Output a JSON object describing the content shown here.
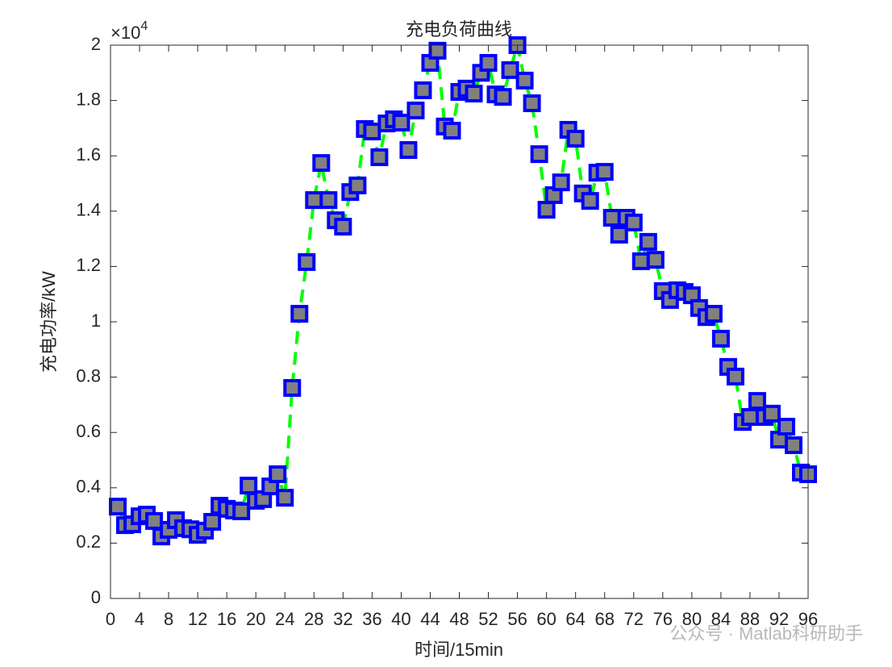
{
  "chart_data": {
    "type": "scatter",
    "title": "充电负荷曲线",
    "x_label": "时间/15min",
    "y_label": "充电功率/kW",
    "y_multiplier": "×10",
    "y_multiplier_exponent": "4",
    "watermark": "公众号 · Matlab科研助手",
    "x": [
      1,
      2,
      3,
      4,
      5,
      6,
      7,
      8,
      9,
      10,
      11,
      12,
      13,
      14,
      15,
      16,
      17,
      18,
      19,
      20,
      21,
      22,
      23,
      24,
      25,
      26,
      27,
      28,
      29,
      30,
      31,
      32,
      33,
      34,
      35,
      36,
      37,
      38,
      39,
      40,
      41,
      42,
      43,
      44,
      45,
      46,
      47,
      48,
      49,
      50,
      51,
      52,
      53,
      54,
      55,
      56,
      57,
      58,
      59,
      60,
      61,
      62,
      63,
      64,
      65,
      66,
      67,
      68,
      69,
      70,
      71,
      72,
      73,
      74,
      75,
      76,
      77,
      78,
      79,
      80,
      81,
      82,
      83,
      84,
      85,
      86,
      87,
      88,
      89,
      90,
      91,
      92,
      93,
      94,
      95,
      96
    ],
    "series": [
      {
        "type": "line",
        "color": "#00ff00",
        "values": [
          0.332,
          0.265,
          0.268,
          0.297,
          0.303,
          0.28,
          0.224,
          0.248,
          0.283,
          0.254,
          0.25,
          0.23,
          0.245,
          0.277,
          0.335,
          0.324,
          0.318,
          0.315,
          0.408,
          0.353,
          0.359,
          0.405,
          0.449,
          0.364,
          0.761,
          1.029,
          1.216,
          1.44,
          1.574,
          1.44,
          1.367,
          1.344,
          1.469,
          1.493,
          1.697,
          1.688,
          1.595,
          1.717,
          1.732,
          1.72,
          1.621,
          1.764,
          1.837,
          1.936,
          1.98,
          1.706,
          1.691,
          1.831,
          1.843,
          1.825,
          1.9,
          1.936,
          1.822,
          1.813,
          1.91,
          2.0,
          1.872,
          1.79,
          1.606,
          1.405,
          1.458,
          1.504,
          1.694,
          1.662,
          1.464,
          1.437,
          1.539,
          1.542,
          1.376,
          1.315,
          1.376,
          1.359,
          1.219,
          1.289,
          1.224,
          1.111,
          1.079,
          1.114,
          1.108,
          1.096,
          1.05,
          1.017,
          1.029,
          0.939,
          0.837,
          0.802,
          0.638,
          0.656,
          0.714,
          0.656,
          0.668,
          0.574,
          0.621,
          0.554,
          0.455,
          0.449
        ]
      },
      {
        "type": "scatter",
        "color": "#808080",
        "edge_color": "#0000ff",
        "values": [
          0.332,
          0.265,
          0.268,
          0.297,
          0.303,
          0.28,
          0.224,
          0.248,
          0.283,
          0.254,
          0.25,
          0.23,
          0.245,
          0.277,
          0.335,
          0.324,
          0.318,
          0.315,
          0.408,
          0.353,
          0.359,
          0.405,
          0.449,
          0.364,
          0.761,
          1.029,
          1.216,
          1.44,
          1.574,
          1.44,
          1.367,
          1.344,
          1.469,
          1.493,
          1.697,
          1.688,
          1.595,
          1.717,
          1.732,
          1.72,
          1.621,
          1.764,
          1.837,
          1.936,
          1.98,
          1.706,
          1.691,
          1.831,
          1.843,
          1.825,
          1.9,
          1.936,
          1.822,
          1.813,
          1.91,
          2.0,
          1.872,
          1.79,
          1.606,
          1.405,
          1.458,
          1.504,
          1.694,
          1.662,
          1.464,
          1.437,
          1.539,
          1.542,
          1.376,
          1.315,
          1.376,
          1.359,
          1.219,
          1.289,
          1.224,
          1.111,
          1.079,
          1.114,
          1.108,
          1.096,
          1.05,
          1.017,
          1.029,
          0.939,
          0.837,
          0.802,
          0.638,
          0.656,
          0.714,
          0.656,
          0.668,
          0.574,
          0.621,
          0.554,
          0.455,
          0.449
        ]
      }
    ],
    "xlim": [
      0,
      96
    ],
    "xticks": [
      0,
      4,
      8,
      12,
      16,
      20,
      24,
      28,
      32,
      36,
      40,
      44,
      48,
      52,
      56,
      60,
      64,
      68,
      72,
      76,
      80,
      84,
      88,
      92,
      96
    ],
    "ylim": [
      0,
      2
    ],
    "yticks": [
      0,
      0.2,
      0.4,
      0.6,
      0.8,
      1,
      1.2,
      1.4,
      1.6,
      1.8,
      2
    ],
    "grid": false
  }
}
